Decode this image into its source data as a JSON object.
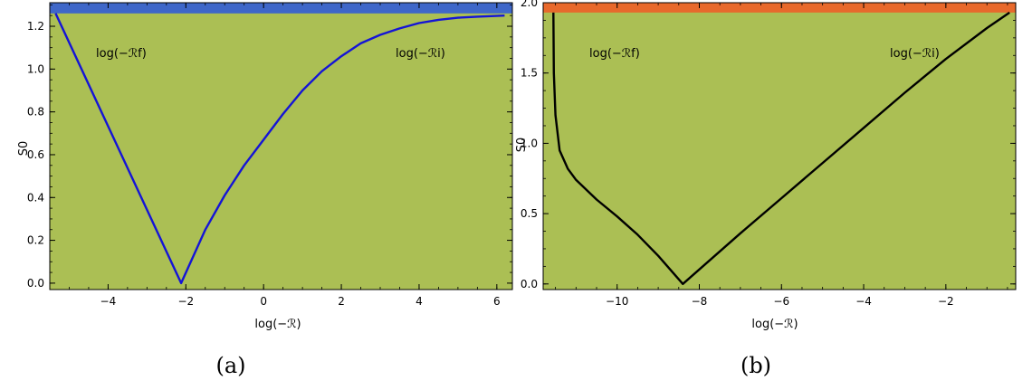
{
  "figure": {
    "panels": [
      {
        "caption": "(a)",
        "ylabel": "S0",
        "xlabel": "log(−ℛ)",
        "colors": {
          "plot_bg": "#abbf54",
          "band": "#3f67c9",
          "curve": "#1414d6"
        },
        "region_labels": [
          {
            "id": "rf",
            "text": "log(−ℛf)"
          },
          {
            "id": "ri",
            "text": "log(−ℛi)"
          }
        ]
      },
      {
        "caption": "(b)",
        "ylabel": "S0",
        "xlabel": "log(−ℛ)",
        "colors": {
          "plot_bg": "#abbf54",
          "band": "#e8692c",
          "curve": "#000000"
        },
        "region_labels": [
          {
            "id": "rf",
            "text": "log(−ℛf)"
          },
          {
            "id": "ri",
            "text": "log(−ℛi)"
          }
        ]
      }
    ]
  },
  "chart_data": [
    {
      "type": "line",
      "xlabel": "log(−ℛ)",
      "ylabel": "S0",
      "xlim": [
        -5.5,
        6.4
      ],
      "ylim": [
        -0.03,
        1.31
      ],
      "xticks": [
        -4,
        -2,
        0,
        2,
        4,
        6
      ],
      "yticks": [
        0.0,
        0.2,
        0.4,
        0.6,
        0.8,
        1.0,
        1.2
      ],
      "band": {
        "y_from": 1.26,
        "y_to": 1.31
      },
      "series": [
        {
          "x": [
            -5.35,
            -2.12,
            -1.5,
            -1.0,
            -0.5,
            0.0,
            0.5,
            1.0,
            1.5,
            2.0,
            2.5,
            3.0,
            3.5,
            4.0,
            4.5,
            5.0,
            5.5,
            6.2
          ],
          "y": [
            1.26,
            0.0,
            0.25,
            0.41,
            0.55,
            0.67,
            0.79,
            0.9,
            0.99,
            1.06,
            1.12,
            1.16,
            1.19,
            1.215,
            1.23,
            1.24,
            1.245,
            1.25
          ]
        }
      ]
    },
    {
      "type": "line",
      "xlabel": "log(−ℛ)",
      "ylabel": "S0",
      "xlim": [
        -11.8,
        -0.3
      ],
      "ylim": [
        -0.04,
        2.0
      ],
      "xticks": [
        -10,
        -8,
        -6,
        -4,
        -2
      ],
      "yticks": [
        0.0,
        0.5,
        1.0,
        1.5,
        2.0
      ],
      "band": {
        "y_from": 1.93,
        "y_to": 2.0
      },
      "series": [
        {
          "x": [
            -11.55,
            -11.54,
            -11.5,
            -11.4,
            -11.2,
            -11.0,
            -10.5,
            -10.0,
            -9.5,
            -9.0,
            -8.4,
            -7.0,
            -6.0,
            -5.0,
            -4.0,
            -3.0,
            -2.0,
            -1.0,
            -0.45
          ],
          "y": [
            1.93,
            1.5,
            1.2,
            0.95,
            0.82,
            0.74,
            0.6,
            0.48,
            0.35,
            0.2,
            0.0,
            0.36,
            0.61,
            0.86,
            1.11,
            1.36,
            1.6,
            1.82,
            1.93
          ]
        }
      ]
    }
  ]
}
